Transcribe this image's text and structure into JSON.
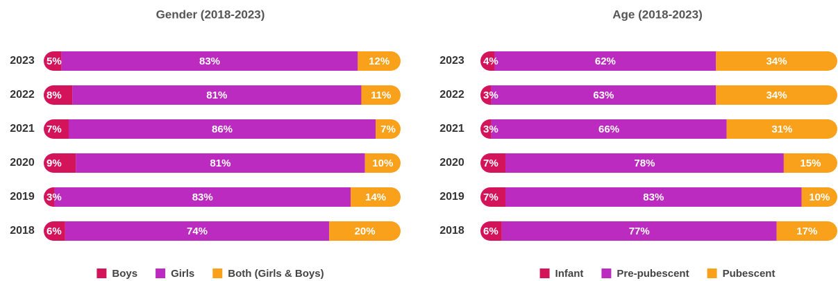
{
  "chart_data": [
    {
      "type": "bar",
      "orientation": "horizontal",
      "stacked": true,
      "title": "Gender (2018-2023)",
      "categories": [
        "2023",
        "2022",
        "2021",
        "2020",
        "2019",
        "2018"
      ],
      "series": [
        {
          "name": "Boys",
          "color": "#d4145a",
          "values": [
            5,
            8,
            7,
            9,
            3,
            6
          ],
          "value_labels": [
            "5%",
            "8%",
            "7%",
            "9%",
            "3%",
            "6%"
          ]
        },
        {
          "name": "Girls",
          "color": "#bb2bbf",
          "values": [
            83,
            81,
            86,
            81,
            83,
            74
          ],
          "value_labels": [
            "83%",
            "81%",
            "86%",
            "81%",
            "83%",
            "74%"
          ]
        },
        {
          "name": "Both (Girls & Boys)",
          "color": "#f9a11b",
          "values": [
            12,
            11,
            7,
            10,
            14,
            20
          ],
          "value_labels": [
            "12%",
            "11%",
            "7%",
            "10%",
            "14%",
            "20%"
          ]
        }
      ],
      "legend": "bottom"
    },
    {
      "type": "bar",
      "orientation": "horizontal",
      "stacked": true,
      "title": "Age (2018-2023)",
      "categories": [
        "2023",
        "2022",
        "2021",
        "2020",
        "2019",
        "2018"
      ],
      "series": [
        {
          "name": "Infant",
          "color": "#d4145a",
          "values": [
            4,
            3,
            3,
            7,
            7,
            6
          ],
          "value_labels": [
            "4%",
            "3%",
            "3%",
            "7%",
            "7%",
            "6%"
          ]
        },
        {
          "name": "Pre-pubescent",
          "color": "#bb2bbf",
          "values": [
            62,
            63,
            66,
            78,
            83,
            77
          ],
          "value_labels": [
            "62%",
            "63%",
            "66%",
            "78%",
            "83%",
            "77%"
          ]
        },
        {
          "name": "Pubescent",
          "color": "#f9a11b",
          "values": [
            34,
            34,
            31,
            15,
            10,
            17
          ],
          "value_labels": [
            "34%",
            "34%",
            "31%",
            "15%",
            "10%",
            "17%"
          ]
        }
      ],
      "legend": "bottom"
    }
  ]
}
